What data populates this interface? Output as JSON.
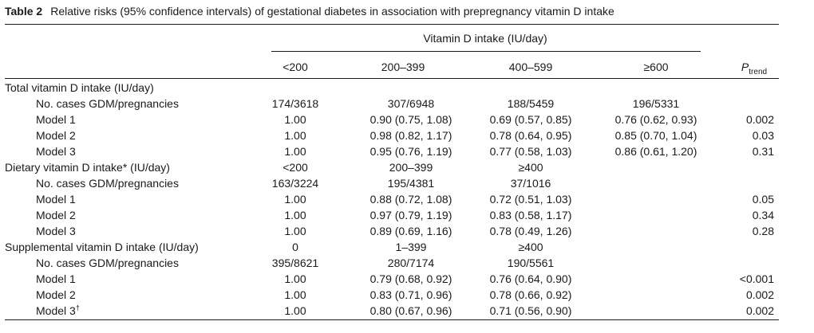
{
  "caption": {
    "label": "Table 2",
    "text": "Relative risks (95% confidence intervals) of gestational diabetes in association with prepregnancy vitamin D intake"
  },
  "header": {
    "span": "Vitamin  D intake (IU/day)",
    "columns": [
      "<200",
      "200–399",
      "400–599",
      "≥600"
    ],
    "ptrend_main": "P",
    "ptrend_sub": "trend"
  },
  "rows": [
    {
      "label": "Total vitamin D intake (IU/day)",
      "c1": "",
      "c2": "",
      "c3": "",
      "c4": "",
      "p": ""
    },
    {
      "label": "No. cases GDM/pregnancies",
      "c1": "174/3618",
      "c2": "307/6948",
      "c3": "188/5459",
      "c4": "196/5331",
      "p": ""
    },
    {
      "label": "Model 1",
      "c1": "1.00",
      "c2": "0.90 (0.75, 1.08)",
      "c3": "0.69 (0.57, 0.85)",
      "c4": "0.76 (0.62, 0.93)",
      "p": "0.002"
    },
    {
      "label": "Model 2",
      "c1": "1.00",
      "c2": "0.98 (0.82, 1.17)",
      "c3": "0.78 (0.64, 0.95)",
      "c4": "0.85 (0.70, 1.04)",
      "p": "0.03"
    },
    {
      "label": "Model 3",
      "c1": "1.00",
      "c2": "0.95 (0.76, 1.19)",
      "c3": "0.77 (0.58, 1.03)",
      "c4": "0.86 (0.61, 1.20)",
      "p": "0.31"
    },
    {
      "label": "Dietary vitamin D intake* (IU/day)",
      "c1": "<200",
      "c2": "200–399",
      "c3": "≥400",
      "c4": "",
      "p": ""
    },
    {
      "label": "No. cases GDM/pregnancies",
      "c1": "163/3224",
      "c2": "195/4381",
      "c3": "37/1016",
      "c4": "",
      "p": ""
    },
    {
      "label": "Model 1",
      "c1": "1.00",
      "c2": "0.88 (0.72, 1.08)",
      "c3": "0.72 (0.51, 1.03)",
      "c4": "",
      "p": "0.05"
    },
    {
      "label": "Model 2",
      "c1": "1.00",
      "c2": "0.97 (0.79, 1.19)",
      "c3": "0.83 (0.58, 1.17)",
      "c4": "",
      "p": "0.34"
    },
    {
      "label": "Model 3",
      "c1": "1.00",
      "c2": "0.89 (0.69, 1.16)",
      "c3": "0.78 (0.49, 1.26)",
      "c4": "",
      "p": "0.28"
    },
    {
      "label": "Supplemental vitamin D intake (IU/day)",
      "c1": "0",
      "c2": "1–399",
      "c3": "≥400",
      "c4": "",
      "p": ""
    },
    {
      "label": "No. cases GDM/pregnancies",
      "c1": "395/8621",
      "c2": "280/7174",
      "c3": "190/5561",
      "c4": "",
      "p": ""
    },
    {
      "label": "Model 1",
      "c1": "1.00",
      "c2": "0.79 (0.68, 0.92)",
      "c3": "0.76 (0.64, 0.90)",
      "c4": "",
      "p": "<0.001"
    },
    {
      "label": "Model 2",
      "c1": "1.00",
      "c2": "0.83 (0.71, 0.96)",
      "c3": "0.78 (0.66, 0.92)",
      "c4": "",
      "p": "0.002"
    },
    {
      "label": "Model 3",
      "sup": "†",
      "c1": "1.00",
      "c2": "0.80 (0.67, 0.96)",
      "c3": "0.71 (0.56, 0.90)",
      "c4": "",
      "p": "0.002"
    }
  ]
}
